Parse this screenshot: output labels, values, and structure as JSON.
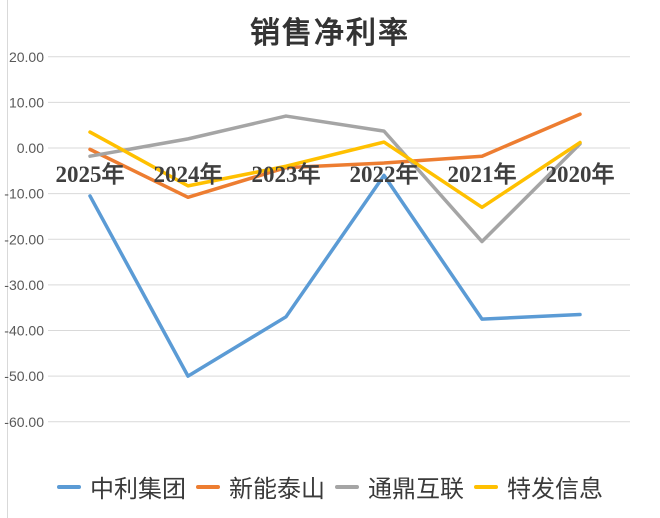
{
  "page": {
    "background": "#ffffff"
  },
  "chart_data": {
    "type": "line",
    "title": "销售净利率",
    "categories": [
      "2025年",
      "2024年",
      "2023年",
      "2022年",
      "2021年",
      "2020年"
    ],
    "series": [
      {
        "name": "中利集团",
        "color": "#5B9BD5",
        "values": [
          -10.5,
          -50.0,
          -37.0,
          -6.0,
          -37.5,
          -36.5
        ]
      },
      {
        "name": "新能泰山",
        "color": "#ED7D31",
        "values": [
          -0.3,
          -10.8,
          -4.3,
          -3.3,
          -1.8,
          7.4
        ]
      },
      {
        "name": "通鼎互联",
        "color": "#A5A5A5",
        "values": [
          -1.8,
          2.0,
          7.0,
          3.7,
          -20.5,
          0.9
        ]
      },
      {
        "name": "特发信息",
        "color": "#FFC000",
        "values": [
          3.5,
          -8.3,
          -4.0,
          1.3,
          -13.0,
          1.2
        ]
      }
    ],
    "y_axis": {
      "min": -60,
      "max": 20,
      "step": 10,
      "tick_labels": [
        "20.00",
        "10.00",
        "0.00",
        "-10.00",
        "-20.00",
        "-30.00",
        "-40.00",
        "-50.00",
        "-60.00"
      ]
    },
    "x_axis_labels_position": "at-zero-line",
    "grid": true,
    "gridline_color": "#d9d9d9",
    "axis_tick_color": "#595959",
    "category_label_color": "#3f3f3f",
    "legend_position": "bottom",
    "line_width": 3.5
  }
}
